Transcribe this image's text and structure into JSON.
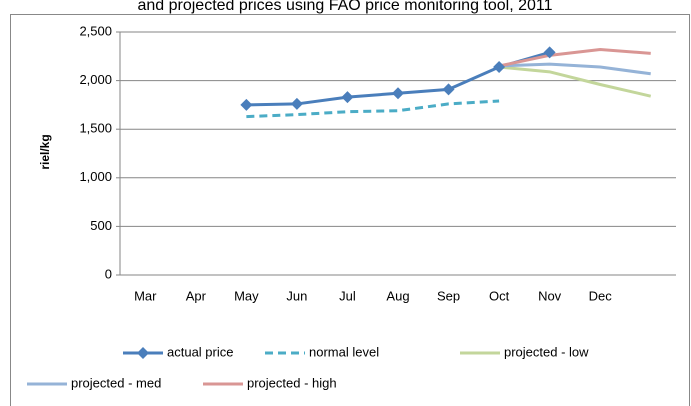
{
  "chart_data": {
    "type": "line",
    "title": "and projected prices using FAO price monitoring tool, 2011",
    "y_label": "riel/kg",
    "categories": [
      "Mar",
      "Apr",
      "May",
      "Jun",
      "Jul",
      "Aug",
      "Sep",
      "Oct",
      "Nov",
      "Dec",
      null
    ],
    "series": [
      {
        "name": "actual price",
        "color": "#4a7ebb",
        "marker": "diamond",
        "dash": false,
        "values": [
          null,
          null,
          1750,
          1760,
          1830,
          1870,
          1910,
          2140,
          2290,
          null,
          null
        ]
      },
      {
        "name": "normal level",
        "color": "#4bacc6",
        "dash": true,
        "values": [
          null,
          null,
          1630,
          1650,
          1680,
          1690,
          1760,
          1790,
          null,
          null,
          null
        ]
      },
      {
        "name": "projected - low",
        "color": "#c3d69b",
        "dash": false,
        "values": [
          null,
          null,
          null,
          null,
          null,
          null,
          null,
          2140,
          2090,
          1960,
          1840
        ]
      },
      {
        "name": "projected - med",
        "color": "#95b3d7",
        "dash": false,
        "values": [
          null,
          null,
          null,
          null,
          null,
          null,
          null,
          2150,
          2170,
          2140,
          2070
        ]
      },
      {
        "name": "projected - high",
        "color": "#d99694",
        "dash": false,
        "values": [
          null,
          null,
          null,
          null,
          null,
          null,
          null,
          2150,
          2260,
          2320,
          2280
        ]
      }
    ],
    "ylim": [
      0,
      2500
    ],
    "yticks": [
      0,
      500,
      {
        "value": 1000,
        "label": "1,000"
      },
      {
        "value": 1500,
        "label": "1,500"
      },
      {
        "value": 2000,
        "label": "2,000"
      },
      {
        "value": 2500,
        "label": "2,500"
      }
    ],
    "grid": true,
    "legend": "bottom"
  }
}
